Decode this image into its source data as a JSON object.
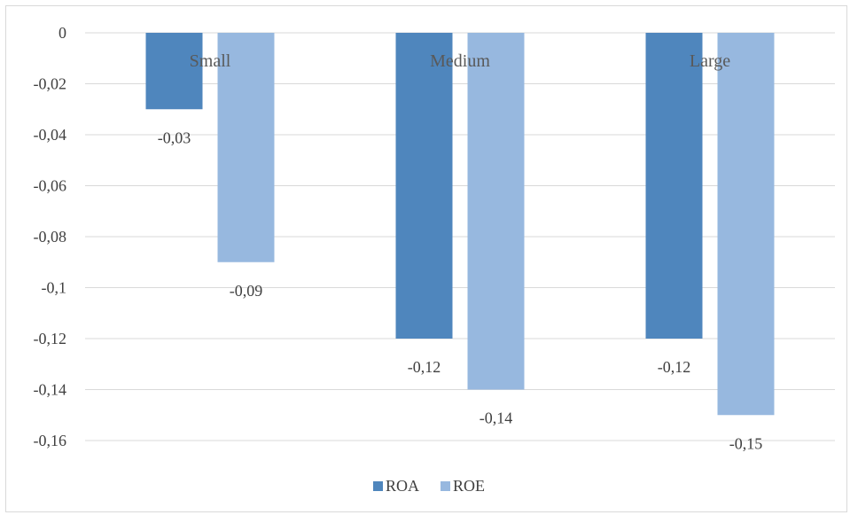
{
  "chart_data": {
    "type": "bar",
    "title": "",
    "xlabel": "",
    "ylabel": "",
    "categories": [
      "Small",
      "Medium",
      "Large"
    ],
    "series": [
      {
        "name": "ROA",
        "color": "#4f86bd",
        "values": [
          -0.03,
          -0.12,
          -0.12
        ],
        "labels": [
          "-0,03",
          "-0,12",
          "-0,12"
        ]
      },
      {
        "name": "ROE",
        "color": "#97b8df",
        "values": [
          -0.09,
          -0.14,
          -0.15
        ],
        "labels": [
          "-0,09",
          "-0,14",
          "-0,15"
        ]
      }
    ],
    "ylim": [
      -0.16,
      0
    ],
    "yticks": [
      0,
      -0.02,
      -0.04,
      -0.06,
      -0.08,
      -0.1,
      -0.12,
      -0.14,
      -0.16
    ],
    "ytick_labels": [
      "0",
      "-0,02",
      "-0,04",
      "-0,06",
      "-0,08",
      "-0,1",
      "-0,12",
      "-0,14",
      "-0,16"
    ],
    "grid": true,
    "legend": "bottom"
  }
}
